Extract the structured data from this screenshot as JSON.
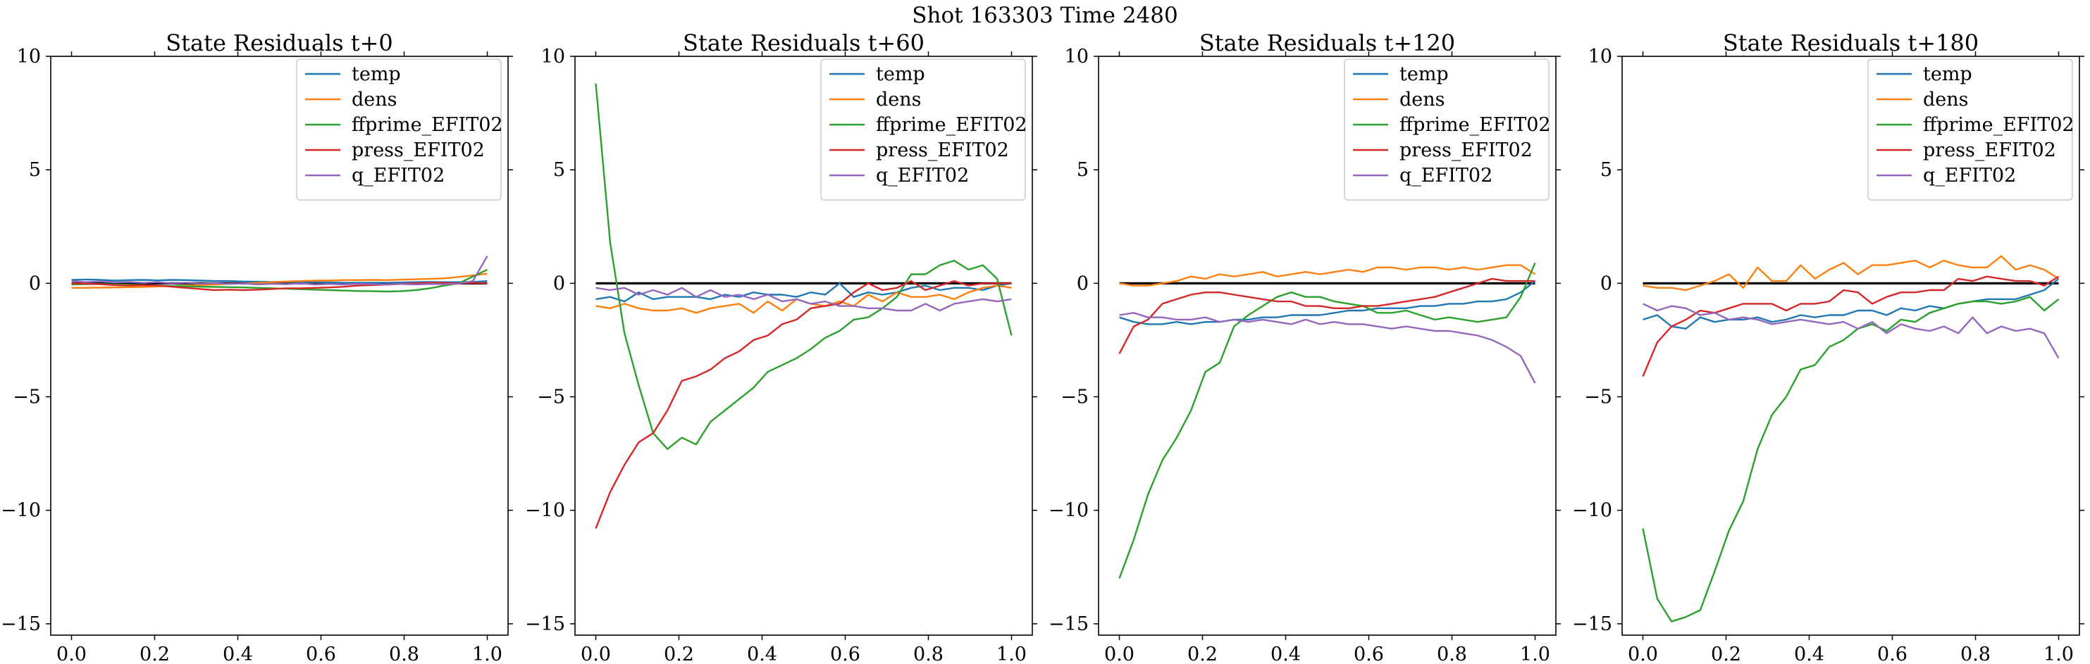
{
  "suptitle": "Shot 163303   Time 2480",
  "colors": {
    "temp": "#1f77b4",
    "dens": "#ff7f0e",
    "ffprime_EFIT02": "#2ca02c",
    "press_EFIT02": "#d62728",
    "q_EFIT02": "#9467bd",
    "zero_line": "#000000"
  },
  "chart_data": [
    {
      "type": "line",
      "title": "State Residuals t+0",
      "xlabel": "",
      "ylabel": "",
      "xlim": [
        -0.05,
        1.05
      ],
      "ylim": [
        -15.5,
        10
      ],
      "xticks": [
        "0.0",
        "0.2",
        "0.4",
        "0.6",
        "0.8",
        "1.0"
      ],
      "yticks": [
        "10",
        "5",
        "0",
        "−5",
        "−10",
        "−15"
      ],
      "grid": false,
      "legend_position": "upper right",
      "zero_line": true,
      "x": [
        0.0,
        0.0345,
        0.069,
        0.1034,
        0.1379,
        0.1724,
        0.2069,
        0.2414,
        0.2759,
        0.3103,
        0.3448,
        0.3793,
        0.4138,
        0.4483,
        0.4828,
        0.5172,
        0.5517,
        0.5862,
        0.6207,
        0.6552,
        0.6897,
        0.7241,
        0.7586,
        0.7931,
        0.8276,
        0.8621,
        0.8966,
        0.931,
        0.9655,
        1.0
      ],
      "series": [
        {
          "name": "temp",
          "values": [
            0.15,
            0.17,
            0.15,
            0.12,
            0.14,
            0.15,
            0.13,
            0.15,
            0.14,
            0.12,
            0.1,
            0.1,
            0.08,
            0.07,
            0.06,
            0.06,
            0.05,
            0.05,
            0.04,
            0.03,
            0.03,
            0.03,
            0.03,
            0.04,
            0.05,
            0.06,
            0.05,
            0.05,
            0.06,
            0.1
          ]
        },
        {
          "name": "dens",
          "values": [
            -0.2,
            -0.2,
            -0.19,
            -0.18,
            -0.17,
            -0.16,
            -0.14,
            -0.12,
            -0.1,
            -0.08,
            -0.05,
            -0.02,
            0.0,
            0.02,
            0.05,
            0.08,
            0.1,
            0.12,
            0.12,
            0.14,
            0.14,
            0.15,
            0.14,
            0.16,
            0.18,
            0.2,
            0.22,
            0.28,
            0.35,
            0.42
          ]
        },
        {
          "name": "ffprime_EFIT02",
          "values": [
            -0.05,
            -0.04,
            -0.03,
            -0.05,
            -0.06,
            -0.08,
            -0.1,
            -0.12,
            -0.13,
            -0.15,
            -0.16,
            -0.17,
            -0.18,
            -0.2,
            -0.22,
            -0.24,
            -0.26,
            -0.28,
            -0.3,
            -0.32,
            -0.34,
            -0.35,
            -0.36,
            -0.35,
            -0.3,
            -0.22,
            -0.1,
            0.0,
            0.3,
            0.6
          ]
        },
        {
          "name": "press_EFIT02",
          "values": [
            0.0,
            -0.02,
            -0.04,
            -0.08,
            -0.1,
            -0.08,
            -0.1,
            -0.15,
            -0.2,
            -0.25,
            -0.3,
            -0.28,
            -0.3,
            -0.28,
            -0.25,
            -0.22,
            -0.22,
            -0.2,
            -0.18,
            -0.15,
            -0.1,
            -0.08,
            -0.05,
            -0.02,
            0.0,
            0.02,
            0.02,
            0.0,
            0.02,
            0.0
          ]
        },
        {
          "name": "q_EFIT02",
          "values": [
            0.1,
            0.05,
            0.08,
            0.04,
            0.06,
            0.02,
            0.05,
            0.0,
            0.03,
            -0.02,
            0.01,
            -0.03,
            0.0,
            -0.05,
            -0.02,
            -0.04,
            0.0,
            -0.05,
            -0.03,
            -0.05,
            -0.02,
            -0.04,
            -0.06,
            -0.03,
            -0.05,
            -0.03,
            -0.04,
            -0.02,
            0.1,
            1.2
          ]
        }
      ]
    },
    {
      "type": "line",
      "title": "State Residuals t+60",
      "xlabel": "",
      "ylabel": "",
      "xlim": [
        -0.05,
        1.05
      ],
      "ylim": [
        -15.5,
        10
      ],
      "xticks": [
        "0.0",
        "0.2",
        "0.4",
        "0.6",
        "0.8",
        "1.0"
      ],
      "yticks": [
        "10",
        "5",
        "0",
        "−5",
        "−10",
        "−15"
      ],
      "grid": false,
      "legend_position": "upper right",
      "zero_line": true,
      "x": [
        0.0,
        0.0345,
        0.069,
        0.1034,
        0.1379,
        0.1724,
        0.2069,
        0.2414,
        0.2759,
        0.3103,
        0.3448,
        0.3793,
        0.4138,
        0.4483,
        0.4828,
        0.5172,
        0.5517,
        0.5862,
        0.6207,
        0.6552,
        0.6897,
        0.7241,
        0.7586,
        0.7931,
        0.8276,
        0.8621,
        0.8966,
        0.931,
        0.9655,
        1.0
      ],
      "series": [
        {
          "name": "temp",
          "values": [
            -0.7,
            -0.6,
            -0.8,
            -0.4,
            -0.7,
            -0.6,
            -0.6,
            -0.6,
            -0.7,
            -0.5,
            -0.6,
            -0.4,
            -0.5,
            -0.5,
            -0.6,
            -0.4,
            -0.5,
            0.0,
            -0.6,
            -0.4,
            -0.5,
            -0.4,
            -0.2,
            -0.1,
            -0.3,
            -0.2,
            -0.2,
            -0.3,
            -0.1,
            0.0
          ]
        },
        {
          "name": "dens",
          "values": [
            -1.0,
            -1.1,
            -0.9,
            -1.1,
            -1.2,
            -1.2,
            -1.1,
            -1.3,
            -1.1,
            -1.0,
            -0.9,
            -1.3,
            -0.8,
            -1.2,
            -0.7,
            -0.9,
            -1.0,
            -0.8,
            -1.0,
            -0.5,
            -0.8,
            -0.4,
            -0.6,
            -0.6,
            -0.5,
            -0.7,
            -0.4,
            -0.2,
            -0.1,
            -0.2
          ]
        },
        {
          "name": "ffprime_EFIT02",
          "values": [
            8.8,
            1.8,
            -2.2,
            -4.5,
            -6.6,
            -7.3,
            -6.8,
            -7.1,
            -6.1,
            -5.6,
            -5.1,
            -4.6,
            -3.9,
            -3.6,
            -3.3,
            -2.9,
            -2.4,
            -2.1,
            -1.6,
            -1.5,
            -1.1,
            -0.6,
            0.4,
            0.4,
            0.8,
            1.0,
            0.6,
            0.8,
            0.2,
            -2.3
          ]
        },
        {
          "name": "press_EFIT02",
          "values": [
            -10.8,
            -9.2,
            -8.0,
            -7.0,
            -6.6,
            -5.6,
            -4.3,
            -4.1,
            -3.8,
            -3.3,
            -3.0,
            -2.5,
            -2.3,
            -1.8,
            -1.6,
            -1.1,
            -1.0,
            -0.9,
            -0.4,
            0.0,
            -0.3,
            -0.2,
            0.1,
            -0.3,
            -0.1,
            0.1,
            -0.1,
            0.0,
            0.0,
            0.0
          ]
        },
        {
          "name": "q_EFIT02",
          "values": [
            -0.2,
            -0.3,
            -0.2,
            -0.5,
            -0.3,
            -0.5,
            -0.2,
            -0.6,
            -0.3,
            -0.6,
            -0.5,
            -0.7,
            -0.5,
            -0.8,
            -0.7,
            -0.9,
            -0.8,
            -1.0,
            -1.0,
            -1.1,
            -1.1,
            -1.2,
            -1.2,
            -0.9,
            -1.2,
            -0.9,
            -0.8,
            -0.7,
            -0.8,
            -0.7
          ]
        }
      ]
    },
    {
      "type": "line",
      "title": "State Residuals t+120",
      "xlabel": "",
      "ylabel": "",
      "xlim": [
        -0.05,
        1.05
      ],
      "ylim": [
        -15.5,
        10
      ],
      "xticks": [
        "0.0",
        "0.2",
        "0.4",
        "0.6",
        "0.8",
        "1.0"
      ],
      "yticks": [
        "10",
        "5",
        "0",
        "−5",
        "−10",
        "−15"
      ],
      "grid": false,
      "legend_position": "upper right",
      "zero_line": true,
      "x": [
        0.0,
        0.0345,
        0.069,
        0.1034,
        0.1379,
        0.1724,
        0.2069,
        0.2414,
        0.2759,
        0.3103,
        0.3448,
        0.3793,
        0.4138,
        0.4483,
        0.4828,
        0.5172,
        0.5517,
        0.5862,
        0.6207,
        0.6552,
        0.6897,
        0.7241,
        0.7586,
        0.7931,
        0.8276,
        0.8621,
        0.8966,
        0.931,
        0.9655,
        1.0
      ],
      "series": [
        {
          "name": "temp",
          "values": [
            -1.5,
            -1.7,
            -1.8,
            -1.8,
            -1.7,
            -1.8,
            -1.7,
            -1.7,
            -1.6,
            -1.6,
            -1.5,
            -1.5,
            -1.4,
            -1.4,
            -1.4,
            -1.3,
            -1.2,
            -1.2,
            -1.1,
            -1.1,
            -1.1,
            -1.0,
            -1.0,
            -0.9,
            -0.9,
            -0.8,
            -0.8,
            -0.7,
            -0.4,
            0.1
          ]
        },
        {
          "name": "dens",
          "values": [
            0.0,
            -0.1,
            -0.1,
            0.0,
            0.1,
            0.3,
            0.2,
            0.4,
            0.3,
            0.4,
            0.5,
            0.3,
            0.4,
            0.5,
            0.4,
            0.5,
            0.6,
            0.5,
            0.7,
            0.7,
            0.6,
            0.7,
            0.7,
            0.6,
            0.7,
            0.6,
            0.7,
            0.8,
            0.8,
            0.4
          ]
        },
        {
          "name": "ffprime_EFIT02",
          "values": [
            -13.0,
            -11.3,
            -9.3,
            -7.8,
            -6.8,
            -5.6,
            -3.9,
            -3.5,
            -1.9,
            -1.4,
            -1.0,
            -0.6,
            -0.4,
            -0.6,
            -0.6,
            -0.8,
            -0.9,
            -1.0,
            -1.3,
            -1.3,
            -1.2,
            -1.4,
            -1.6,
            -1.5,
            -1.6,
            -1.7,
            -1.6,
            -1.5,
            -0.6,
            0.9
          ]
        },
        {
          "name": "press_EFIT02",
          "values": [
            -3.1,
            -1.9,
            -1.6,
            -0.9,
            -0.7,
            -0.5,
            -0.4,
            -0.4,
            -0.5,
            -0.6,
            -0.7,
            -0.8,
            -0.8,
            -1.0,
            -1.0,
            -1.1,
            -1.1,
            -1.0,
            -1.0,
            -0.9,
            -0.8,
            -0.7,
            -0.6,
            -0.4,
            -0.2,
            0.0,
            0.2,
            0.1,
            0.1,
            0.1
          ]
        },
        {
          "name": "q_EFIT02",
          "values": [
            -1.4,
            -1.3,
            -1.5,
            -1.5,
            -1.6,
            -1.6,
            -1.5,
            -1.7,
            -1.6,
            -1.7,
            -1.6,
            -1.7,
            -1.8,
            -1.6,
            -1.8,
            -1.7,
            -1.8,
            -1.8,
            -1.9,
            -2.0,
            -1.9,
            -2.0,
            -2.1,
            -2.1,
            -2.2,
            -2.3,
            -2.5,
            -2.8,
            -3.2,
            -4.4
          ]
        }
      ]
    },
    {
      "type": "line",
      "title": "State Residuals t+180",
      "xlabel": "",
      "ylabel": "",
      "xlim": [
        -0.05,
        1.05
      ],
      "ylim": [
        -15.5,
        10
      ],
      "xticks": [
        "0.0",
        "0.2",
        "0.4",
        "0.6",
        "0.8",
        "1.0"
      ],
      "yticks": [
        "10",
        "5",
        "0",
        "−5",
        "−10",
        "−15"
      ],
      "grid": false,
      "legend_position": "upper right",
      "zero_line": true,
      "x": [
        0.0,
        0.0345,
        0.069,
        0.1034,
        0.1379,
        0.1724,
        0.2069,
        0.2414,
        0.2759,
        0.3103,
        0.3448,
        0.3793,
        0.4138,
        0.4483,
        0.4828,
        0.5172,
        0.5517,
        0.5862,
        0.6207,
        0.6552,
        0.6897,
        0.7241,
        0.7586,
        0.7931,
        0.8276,
        0.8621,
        0.8966,
        0.931,
        0.9655,
        1.0
      ],
      "series": [
        {
          "name": "temp",
          "values": [
            -1.6,
            -1.4,
            -1.9,
            -2.0,
            -1.5,
            -1.7,
            -1.6,
            -1.6,
            -1.5,
            -1.7,
            -1.6,
            -1.4,
            -1.5,
            -1.4,
            -1.4,
            -1.2,
            -1.2,
            -1.4,
            -1.1,
            -1.2,
            -1.0,
            -1.1,
            -0.9,
            -0.8,
            -0.7,
            -0.7,
            -0.7,
            -0.5,
            -0.3,
            0.2
          ]
        },
        {
          "name": "dens",
          "values": [
            -0.1,
            -0.2,
            -0.2,
            -0.3,
            -0.1,
            0.1,
            0.4,
            -0.2,
            0.7,
            0.1,
            0.1,
            0.8,
            0.2,
            0.6,
            0.9,
            0.4,
            0.8,
            0.8,
            0.9,
            1.0,
            0.7,
            1.0,
            0.8,
            0.7,
            0.7,
            1.2,
            0.6,
            0.8,
            0.6,
            0.2
          ]
        },
        {
          "name": "ffprime_EFIT02",
          "values": [
            -10.8,
            -13.9,
            -14.9,
            -14.7,
            -14.4,
            -12.7,
            -10.9,
            -9.6,
            -7.3,
            -5.8,
            -5.0,
            -3.8,
            -3.6,
            -2.8,
            -2.5,
            -2.0,
            -1.8,
            -2.1,
            -1.6,
            -1.7,
            -1.3,
            -1.1,
            -0.9,
            -0.8,
            -0.8,
            -0.9,
            -0.8,
            -0.6,
            -1.2,
            -0.7
          ]
        },
        {
          "name": "press_EFIT02",
          "values": [
            -4.1,
            -2.6,
            -1.9,
            -1.6,
            -1.2,
            -1.3,
            -1.1,
            -0.9,
            -0.9,
            -0.9,
            -1.2,
            -0.9,
            -0.9,
            -0.8,
            -0.3,
            -0.4,
            -0.9,
            -0.6,
            -0.4,
            -0.4,
            -0.3,
            -0.3,
            0.2,
            0.1,
            0.3,
            0.2,
            0.1,
            0.1,
            -0.1,
            0.3
          ]
        },
        {
          "name": "q_EFIT02",
          "values": [
            -0.9,
            -1.2,
            -1.0,
            -1.1,
            -1.4,
            -1.3,
            -1.6,
            -1.5,
            -1.6,
            -1.8,
            -1.7,
            -1.6,
            -1.7,
            -1.8,
            -1.7,
            -2.0,
            -1.7,
            -2.2,
            -1.8,
            -2.0,
            -2.1,
            -1.9,
            -2.2,
            -1.5,
            -2.2,
            -1.9,
            -2.1,
            -2.0,
            -2.2,
            -3.3
          ]
        }
      ]
    }
  ]
}
